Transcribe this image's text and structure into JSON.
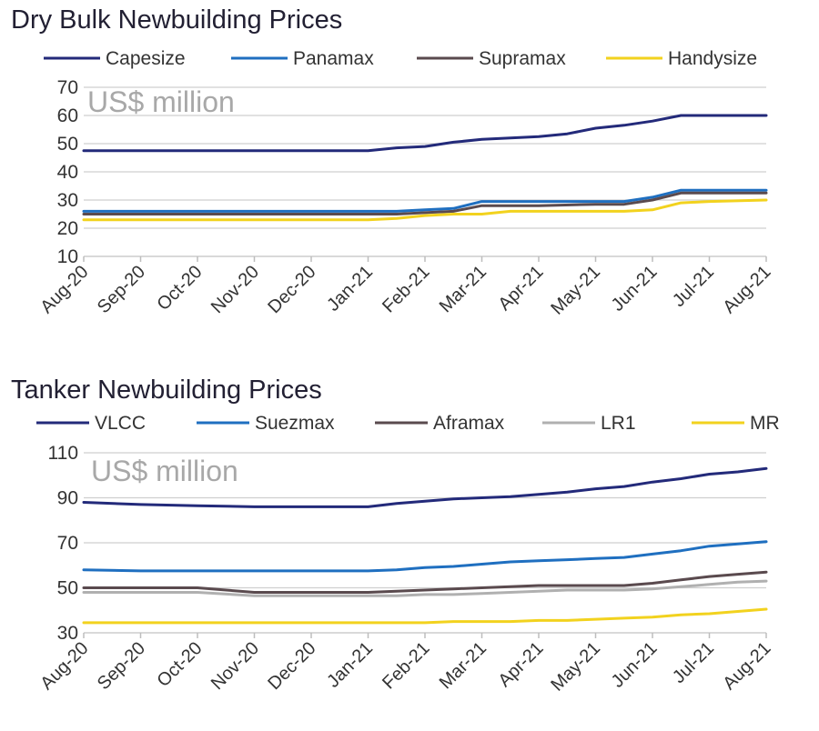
{
  "chart_data": [
    {
      "type": "line",
      "title": "Dry Bulk Newbuilding Prices",
      "units_label": "US$ million",
      "ylim": [
        10,
        70
      ],
      "yticks": [
        10,
        20,
        30,
        40,
        50,
        60,
        70
      ],
      "x_labels": [
        "Aug-20",
        "Sep-20",
        "Oct-20",
        "Nov-20",
        "Dec-20",
        "Jan-21",
        "Feb-21",
        "Mar-21",
        "Apr-21",
        "May-21",
        "Jun-21",
        "Jul-21",
        "Aug-21"
      ],
      "grid": true,
      "legend_position": "top",
      "series": [
        {
          "name": "Capesize",
          "color": "#232a7a",
          "x": [
            0,
            1,
            2,
            3,
            4,
            5,
            5.5,
            6,
            6.5,
            7,
            7.5,
            8,
            8.5,
            9,
            9.5,
            10,
            10.5,
            11,
            12
          ],
          "values": [
            47.5,
            47.5,
            47.5,
            47.5,
            47.5,
            47.5,
            48.5,
            49,
            50.5,
            51.5,
            52,
            52.5,
            53.5,
            55.5,
            56.5,
            58,
            60,
            60,
            60
          ]
        },
        {
          "name": "Panamax",
          "color": "#1f6fc0",
          "x": [
            0,
            1,
            2,
            3,
            4,
            5,
            5.5,
            6,
            6.5,
            7,
            8,
            9,
            9.5,
            10,
            10.5,
            11,
            12
          ],
          "values": [
            26,
            26,
            26,
            26,
            26,
            26,
            26,
            26.5,
            27,
            29.5,
            29.5,
            29.5,
            29.5,
            31,
            33.5,
            33.5,
            33.5
          ]
        },
        {
          "name": "Supramax",
          "color": "#5a4a4e",
          "x": [
            0,
            1,
            2,
            3,
            4,
            5,
            5.5,
            6,
            6.5,
            7,
            8,
            9,
            9.5,
            10,
            10.5,
            11,
            12
          ],
          "values": [
            25,
            25,
            25,
            25,
            25,
            25,
            25,
            25.5,
            26,
            28,
            28,
            28.5,
            28.5,
            30,
            32.5,
            32.5,
            32.5
          ]
        },
        {
          "name": "Handysize",
          "color": "#f2d21e",
          "x": [
            0,
            1,
            2,
            3,
            4,
            5,
            5.5,
            6,
            6.5,
            7,
            7.5,
            8,
            9,
            9.5,
            10,
            10.5,
            11,
            12
          ],
          "values": [
            23,
            23,
            23,
            23,
            23,
            23,
            23.5,
            24.5,
            25,
            25,
            26,
            26,
            26,
            26,
            26.5,
            29,
            29.5,
            30
          ]
        }
      ]
    },
    {
      "type": "line",
      "title": "Tanker Newbuilding Prices",
      "units_label": "US$ million",
      "ylim": [
        30,
        110
      ],
      "yticks": [
        30,
        50,
        70,
        90,
        110
      ],
      "x_labels": [
        "Aug-20",
        "Sep-20",
        "Oct-20",
        "Nov-20",
        "Dec-20",
        "Jan-21",
        "Feb-21",
        "Mar-21",
        "Apr-21",
        "May-21",
        "Jun-21",
        "Jul-21",
        "Aug-21"
      ],
      "grid": true,
      "legend_position": "top",
      "series": [
        {
          "name": "VLCC",
          "color": "#232a7a",
          "x": [
            0,
            1,
            2,
            3,
            4,
            5,
            5.5,
            6,
            6.5,
            7,
            7.5,
            8,
            8.5,
            9,
            9.5,
            10,
            10.5,
            11,
            11.5,
            12
          ],
          "values": [
            88,
            87,
            86.5,
            86,
            86,
            86,
            87.5,
            88.5,
            89.5,
            90,
            90.5,
            91.5,
            92.5,
            94,
            95,
            97,
            98.5,
            100.5,
            101.5,
            103
          ]
        },
        {
          "name": "Suezmax",
          "color": "#1f6fc0",
          "x": [
            0,
            1,
            2,
            3,
            4,
            5,
            5.5,
            6,
            6.5,
            7,
            7.5,
            8,
            8.5,
            9,
            9.5,
            10,
            10.5,
            11,
            11.5,
            12
          ],
          "values": [
            58,
            57.5,
            57.5,
            57.5,
            57.5,
            57.5,
            58,
            59,
            59.5,
            60.5,
            61.5,
            62,
            62.5,
            63,
            63.5,
            65,
            66.5,
            68.5,
            69.5,
            70.5
          ]
        },
        {
          "name": "Aframax",
          "color": "#5a4a4e",
          "x": [
            0,
            1,
            2,
            3,
            4,
            5,
            5.5,
            6,
            6.5,
            7,
            7.5,
            8,
            8.5,
            9,
            9.5,
            10,
            10.5,
            11,
            11.5,
            12
          ],
          "values": [
            50,
            50,
            50,
            48,
            48,
            48,
            48.5,
            49,
            49.5,
            50,
            50.5,
            51,
            51,
            51,
            51,
            52,
            53.5,
            55,
            56,
            57
          ]
        },
        {
          "name": "LR1",
          "color": "#b0b0b0",
          "x": [
            0,
            1,
            2,
            3,
            4,
            5,
            5.5,
            6,
            6.5,
            7,
            7.5,
            8,
            8.5,
            9,
            9.5,
            10,
            10.5,
            11,
            11.5,
            12
          ],
          "values": [
            48,
            48,
            48,
            46.5,
            46.5,
            46.5,
            46.5,
            47,
            47,
            47.5,
            48,
            48.5,
            49,
            49,
            49,
            49.5,
            50.5,
            51.5,
            52.5,
            53
          ]
        },
        {
          "name": "MR",
          "color": "#f2d21e",
          "x": [
            0,
            1,
            2,
            3,
            4,
            5,
            5.5,
            6,
            6.5,
            7,
            7.5,
            8,
            8.5,
            9,
            9.5,
            10,
            10.5,
            11,
            11.5,
            12
          ],
          "values": [
            34.5,
            34.5,
            34.5,
            34.5,
            34.5,
            34.5,
            34.5,
            34.5,
            35,
            35,
            35,
            35.5,
            35.5,
            36,
            36.5,
            37,
            38,
            38.5,
            39.5,
            40.5
          ]
        }
      ]
    }
  ]
}
